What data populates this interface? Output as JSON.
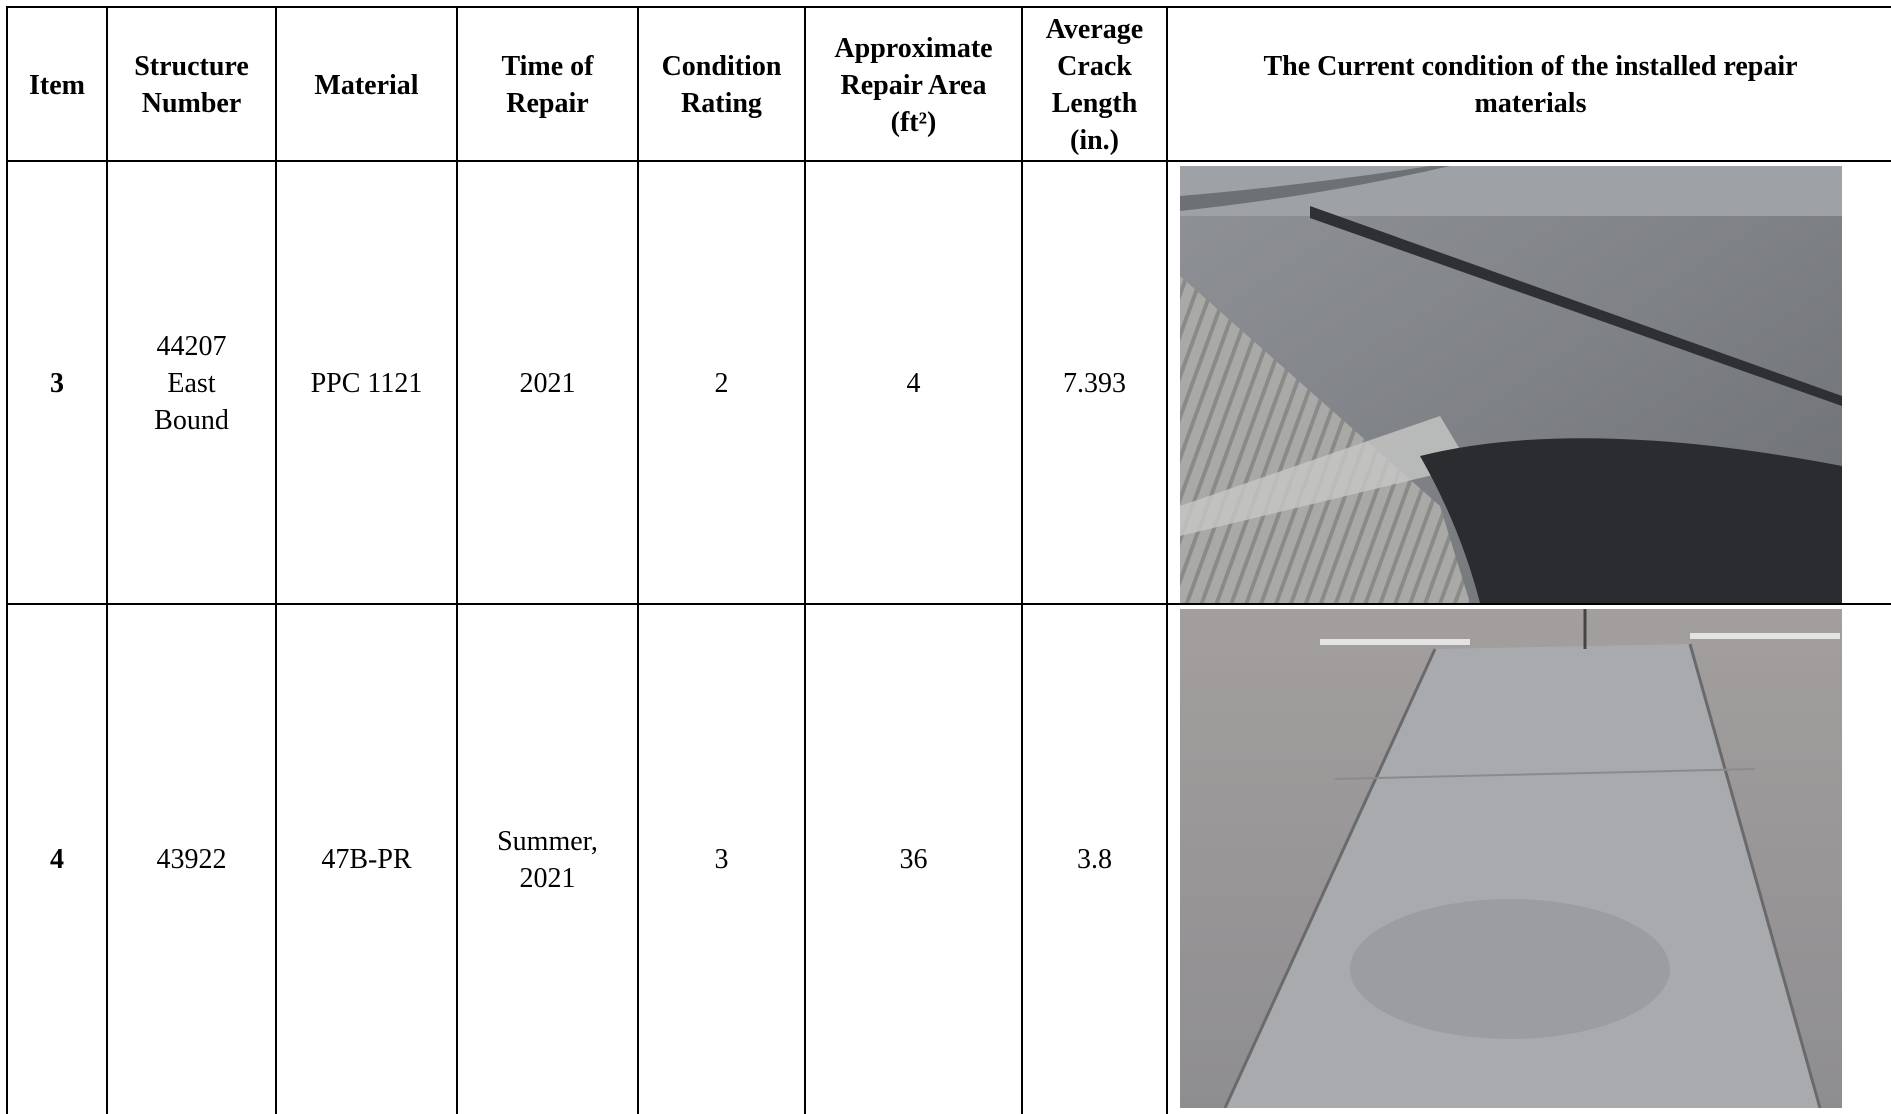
{
  "table": {
    "headers": [
      "Item",
      "Structure\nNumber",
      "Material",
      "Time of\nRepair",
      "Condition\nRating",
      "Approximate\nRepair Area\n(ft²)",
      "Average\nCrack\nLength\n(in.)",
      "The Current condition of the installed repair\nmaterials"
    ],
    "rows": [
      [
        "3",
        "44207\nEast\nBound",
        "PPC 1121",
        "2021",
        "2",
        "4",
        "7.393"
      ],
      [
        "4",
        "43922",
        "47B-PR",
        "Summer,\n2021",
        "3",
        "36",
        "3.8"
      ]
    ]
  }
}
